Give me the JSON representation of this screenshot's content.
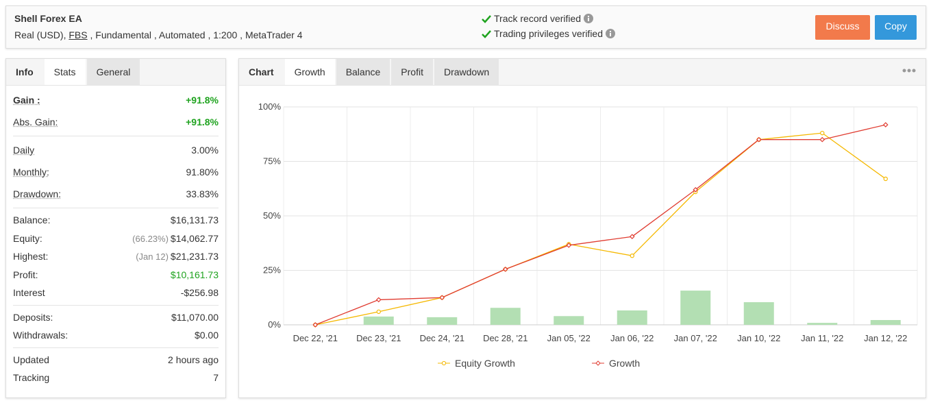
{
  "header": {
    "title": "Shell Forex EA",
    "subtitle": [
      "Real (USD),",
      "FBS",
      ", Fundamental , Automated , 1:200 , MetaTrader 4"
    ],
    "verified": [
      "Track record verified",
      "Trading privileges verified"
    ],
    "buttons": [
      "Discuss",
      "Copy"
    ]
  },
  "left_tabs": {
    "items": [
      "Info",
      "Stats",
      "General"
    ],
    "active": 1
  },
  "stats": [
    [
      {
        "label": "Gain :",
        "value": "+91.8%",
        "color": "#1fa31f"
      },
      {
        "label": "Abs. Gain:",
        "value": "+91.8%",
        "color": "#1fa31f"
      }
    ],
    [
      {
        "label": "Daily",
        "value": "3.00%"
      },
      {
        "label": "Monthly:",
        "value": "91.80%"
      },
      {
        "label": "Drawdown:",
        "value": "33.83%"
      }
    ],
    [
      {
        "label": "Balance:",
        "value": "$16,131.73"
      },
      {
        "label": "Equity:",
        "note": "(66.23%)",
        "value": "$14,062.77"
      },
      {
        "label": "Highest:",
        "note": "(Jan 12)",
        "value": "$21,231.73"
      },
      {
        "label": "Profit:",
        "value": "$10,161.73",
        "color": "#1fa31f"
      },
      {
        "label": "Interest",
        "value": "-$256.98"
      }
    ],
    [
      {
        "label": "Deposits:",
        "value": "$11,070.00"
      },
      {
        "label": "Withdrawals:",
        "value": "$0.00"
      }
    ],
    [
      {
        "label": "Updated",
        "value": "2 hours ago"
      },
      {
        "label": "Tracking",
        "value": "7"
      }
    ]
  ],
  "right_tabs": {
    "items": [
      "Chart",
      "Growth",
      "Balance",
      "Profit",
      "Drawdown"
    ],
    "active": 1
  },
  "chart_data": {
    "type": "line",
    "categories": [
      "Dec 22, '21",
      "Dec 23, '21",
      "Dec 24, '21",
      "Dec 28, '21",
      "Jan 05, '22",
      "Jan 06, '22",
      "Jan 07, '22",
      "Jan 10, '22",
      "Jan 11, '22",
      "Jan 12, '22"
    ],
    "series": [
      {
        "name": "Equity Growth",
        "color": "#f5b800",
        "values": [
          0,
          6,
          12.5,
          25.5,
          37,
          31.7,
          61,
          85,
          88,
          67
        ]
      },
      {
        "name": "Growth",
        "color": "#e03c31",
        "values": [
          0,
          11.5,
          12.5,
          25.5,
          36.5,
          40.5,
          62,
          85,
          85,
          91.8
        ]
      }
    ],
    "bars": {
      "color": "#b3dfb3",
      "values": [
        null,
        3.8,
        3.5,
        7.8,
        4,
        6.6,
        15.7,
        10.4,
        0.9,
        2.2
      ]
    },
    "ylim": [
      0,
      100
    ],
    "yticks": [
      {
        "value": 0,
        "label": "0%"
      },
      {
        "value": 25,
        "label": "25%"
      },
      {
        "value": 50,
        "label": "50%"
      },
      {
        "value": 75,
        "label": "75%"
      },
      {
        "value": 100,
        "label": "100%"
      }
    ],
    "grid": true
  }
}
